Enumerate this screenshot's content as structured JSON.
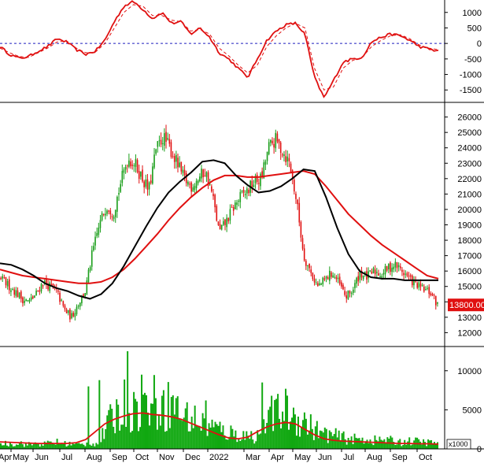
{
  "colors": {
    "up": "#1a9e1a",
    "down": "#e01010",
    "ma_red": "#e01010",
    "ma_black": "#000000",
    "zero_line": "#1f1fbf",
    "price_badge": "#e01010",
    "price_badge_text": "#ffffff",
    "volume_fill": "#10a810",
    "volume_ma": "#e01010",
    "axis": "#000000"
  },
  "x_axis": {
    "labels": [
      "Apr",
      "May",
      "Jun",
      "Jul",
      "Aug",
      "Sep",
      "Oct",
      "Nov",
      "Dec",
      "2022",
      "Mar",
      "Apr",
      "May",
      "Jun",
      "Jul",
      "Aug",
      "Sep",
      "Oct"
    ]
  },
  "chart_data": [
    {
      "type": "line",
      "panel": "oscillator",
      "ylim": [
        -1900,
        1400
      ],
      "yticks": [
        1000,
        500,
        0,
        -500,
        -1000,
        -1500
      ],
      "reference_line": 0,
      "series": [
        {
          "style": "solid",
          "values": [
            -100,
            -350,
            -480,
            -420,
            -250,
            -100,
            150,
            50,
            -200,
            -350,
            -250,
            100,
            700,
            1200,
            1350,
            1100,
            800,
            1000,
            650,
            700,
            300,
            500,
            200,
            -300,
            -500,
            -800,
            -1100,
            -500,
            100,
            400,
            600,
            650,
            300,
            -1100,
            -1750,
            -1200,
            -600,
            -500,
            -450,
            50,
            200,
            300,
            250,
            100,
            -100,
            -180,
            -250
          ]
        },
        {
          "style": "dashed",
          "values": [
            -150,
            -300,
            -420,
            -450,
            -300,
            -150,
            50,
            80,
            -150,
            -300,
            -280,
            0,
            500,
            1000,
            1250,
            1200,
            900,
            900,
            750,
            700,
            400,
            450,
            300,
            -150,
            -400,
            -700,
            -950,
            -700,
            -100,
            250,
            500,
            650,
            500,
            -800,
            -1500,
            -1400,
            -800,
            -550,
            -450,
            -100,
            100,
            250,
            280,
            150,
            -50,
            -150,
            -200
          ]
        }
      ]
    },
    {
      "type": "candlestick",
      "panel": "price",
      "ylim": [
        11100,
        26900
      ],
      "yticks": [
        26000,
        25000,
        24000,
        23000,
        22000,
        21000,
        20000,
        19000,
        18000,
        17000,
        16000,
        15000,
        14000,
        13000,
        12000
      ],
      "last_price_label": "13800.00",
      "last_price": 13800,
      "close_path": [
        15500,
        15100,
        14700,
        14200,
        14000,
        14500,
        15300,
        15000,
        14600,
        13500,
        13000,
        13900,
        14700,
        17200,
        19000,
        20300,
        19800,
        21700,
        23300,
        23000,
        22100,
        21200,
        23800,
        24700,
        24000,
        23000,
        22000,
        21500,
        22000,
        22500,
        21000,
        18500,
        19200,
        20100,
        20800,
        21200,
        21800,
        22000,
        24000,
        24500,
        23800,
        23000,
        20500,
        17000,
        15900,
        15000,
        15400,
        15900,
        15200,
        14300,
        14800,
        15900,
        15600,
        16000,
        15800,
        16200,
        16400,
        16000,
        15500,
        15100,
        14800,
        14600,
        13800
      ],
      "ma_black": [
        16500,
        16400,
        16100,
        15700,
        15200,
        14900,
        14700,
        14400,
        14200,
        14500,
        15200,
        16300,
        17600,
        18900,
        20100,
        21100,
        21800,
        22400,
        23100,
        23200,
        23000,
        22200,
        21600,
        21100,
        21200,
        21500,
        22000,
        22600,
        22500,
        20800,
        18800,
        17100,
        16000,
        15600,
        15500,
        15500,
        15400,
        15400,
        15400,
        15400
      ],
      "ma_red": [
        16100,
        15900,
        15700,
        15600,
        15500,
        15400,
        15300,
        15200,
        15200,
        15300,
        15600,
        16100,
        16800,
        17600,
        18400,
        19300,
        20100,
        20800,
        21400,
        21900,
        22200,
        22200,
        22100,
        22100,
        22200,
        22300,
        22400,
        22500,
        22300,
        21500,
        20600,
        19700,
        19000,
        18300,
        17700,
        17200,
        16700,
        16200,
        15700,
        15500
      ]
    },
    {
      "type": "bar",
      "panel": "volume",
      "ylim": [
        0,
        13000
      ],
      "yticks": [
        10000,
        5000,
        0
      ],
      "unit_label": "x1000",
      "volume_path": [
        800,
        700,
        900,
        600,
        800,
        700,
        1000,
        800,
        700,
        600,
        800,
        700,
        3500,
        5000,
        6500,
        5500,
        6000,
        7000,
        5500,
        6500,
        5000,
        4500,
        4000,
        3500,
        3000,
        2500,
        2200,
        2000,
        1800,
        2000,
        3500,
        5000,
        5500,
        4500,
        4000,
        3000,
        2200,
        2000,
        1700,
        1500,
        1300,
        1400,
        1200,
        1300,
        1100,
        1000,
        1100,
        1000,
        900,
        900
      ],
      "spikes": [
        {
          "pos": 0.2,
          "v": 8000
        },
        {
          "pos": 0.225,
          "v": 8800
        },
        {
          "pos": 0.29,
          "v": 12500
        },
        {
          "pos": 0.322,
          "v": 9500
        },
        {
          "pos": 0.37,
          "v": 6800
        },
        {
          "pos": 0.4,
          "v": 6500
        },
        {
          "pos": 0.47,
          "v": 6200
        },
        {
          "pos": 0.6,
          "v": 8500
        },
        {
          "pos": 0.62,
          "v": 6800
        }
      ],
      "volume_ma": [
        900,
        850,
        800,
        750,
        700,
        700,
        700,
        700,
        800,
        1200,
        2200,
        3200,
        3800,
        4200,
        4500,
        4600,
        4400,
        4300,
        4100,
        3800,
        3300,
        2800,
        2300,
        1800,
        1400,
        1300,
        1500,
        2200,
        2800,
        3200,
        3400,
        3200,
        2500,
        1800,
        1300,
        1100,
        1000,
        950,
        900,
        850,
        800,
        750,
        700,
        700,
        650,
        650,
        600
      ]
    }
  ]
}
